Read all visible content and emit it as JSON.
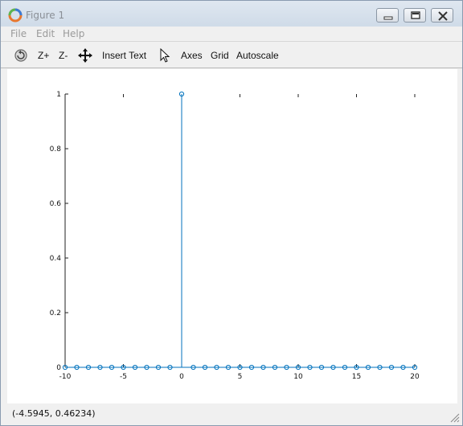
{
  "window": {
    "title": "Figure 1",
    "accent_color": "#1f77b4"
  },
  "menu": {
    "items": [
      "File",
      "Edit",
      "Help"
    ]
  },
  "toolbar": {
    "rotate_icon": "rotate-icon",
    "zoom_in_label": "Z+",
    "zoom_out_label": "Z-",
    "pan_icon": "pan-icon",
    "insert_text_label": "Insert Text",
    "select_icon": "pointer-icon",
    "axes_label": "Axes",
    "grid_label": "Grid",
    "autoscale_label": "Autoscale"
  },
  "status": {
    "coordinates": "(-4.5945, 0.46234)"
  },
  "chart_data": {
    "type": "stem",
    "title": "",
    "xlabel": "",
    "ylabel": "",
    "xlim": [
      -10,
      20
    ],
    "ylim": [
      0,
      1
    ],
    "x_ticks": [
      "-10",
      "-5",
      "0",
      "5",
      "10",
      "15",
      "20"
    ],
    "y_ticks": [
      "0",
      "0.2",
      "0.4",
      "0.6",
      "0.8",
      "1"
    ],
    "x": [
      -10,
      -9,
      -8,
      -7,
      -6,
      -5,
      -4,
      -3,
      -2,
      -1,
      0,
      1,
      2,
      3,
      4,
      5,
      6,
      7,
      8,
      9,
      10,
      11,
      12,
      13,
      14,
      15,
      16,
      17,
      18,
      19,
      20
    ],
    "y": [
      0,
      0,
      0,
      0,
      0,
      0,
      0,
      0,
      0,
      0,
      1,
      0,
      0,
      0,
      0,
      0,
      0,
      0,
      0,
      0,
      0,
      0,
      0,
      0,
      0,
      0,
      0,
      0,
      0,
      0,
      0
    ],
    "grid": false,
    "color": "#0072bd"
  }
}
